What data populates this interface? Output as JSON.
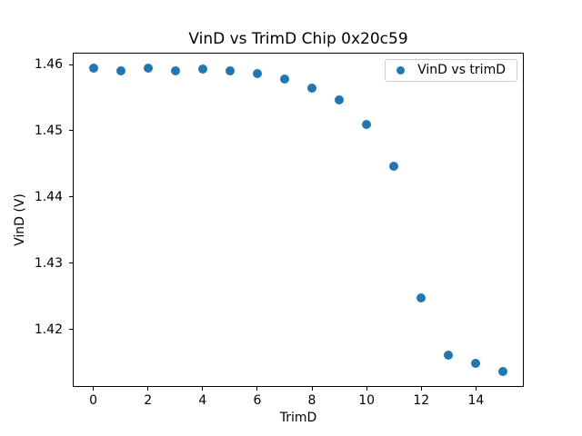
{
  "chart_data": {
    "type": "scatter",
    "title": "VinD vs TrimD Chip 0x20c59",
    "xlabel": "TrimD",
    "ylabel": "VinD (V)",
    "series": [
      {
        "name": "VinD vs trimD",
        "x": [
          0,
          1,
          2,
          3,
          4,
          5,
          6,
          7,
          8,
          9,
          10,
          11,
          12,
          13,
          14,
          15
        ],
        "y": [
          1.4594,
          1.4591,
          1.4595,
          1.459,
          1.4593,
          1.4591,
          1.4587,
          1.4578,
          1.4565,
          1.4547,
          1.4509,
          1.4447,
          1.4247,
          1.4161,
          1.4148,
          1.4136
        ]
      }
    ],
    "legend": {
      "labels": [
        "VinD vs trimD"
      ],
      "position": "upper right"
    },
    "xlim": [
      -0.75,
      15.75
    ],
    "ylim": [
      1.4113,
      1.4618
    ],
    "x_ticks": [
      0,
      2,
      4,
      6,
      8,
      10,
      12,
      14
    ],
    "y_ticks": [
      1.42,
      1.43,
      1.44,
      1.45,
      1.46
    ],
    "y_tick_decimals": 2,
    "grid": false,
    "marker_color": "#1f77b4",
    "spine_color": "#000000",
    "background_color": "#ffffff",
    "legend_border_color": "#cccccc"
  }
}
